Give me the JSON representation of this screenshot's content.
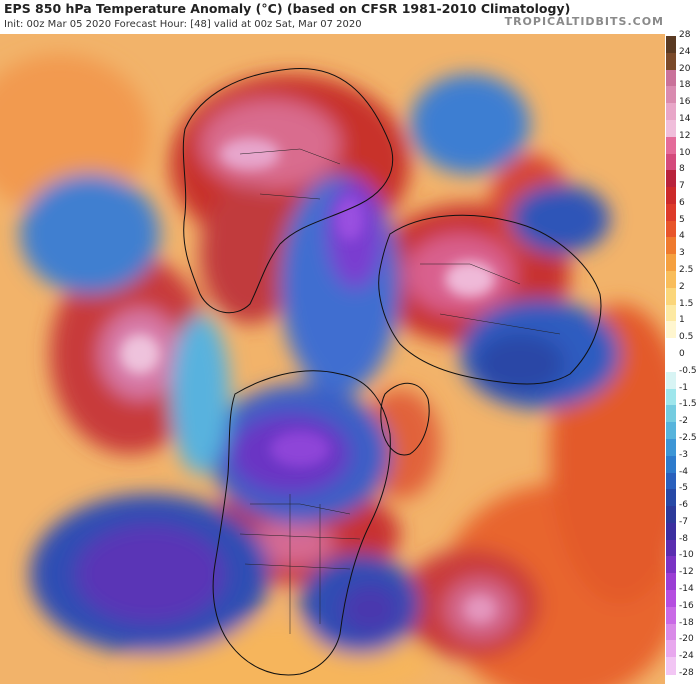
{
  "header": {
    "title": "EPS 850 hPa Temperature Anomaly (°C) (based on CFSR 1981-2010 Climatology)",
    "subtitle": "Init: 00z Mar 05 2020   Forecast Hour: [48]   valid at 00z Sat, Mar 07 2020",
    "brand": "TROPICALTIDBITS.COM"
  },
  "map": {
    "projection": "north-polar-stereographic",
    "features": [
      "coastlines",
      "country-borders",
      "state-borders"
    ]
  },
  "legend": {
    "labels": [
      "28",
      "24",
      "20",
      "18",
      "16",
      "14",
      "12",
      "10",
      "8",
      "7",
      "6",
      "5",
      "4",
      "3",
      "2.5",
      "2",
      "1.5",
      "1",
      "0.5",
      "0",
      "-0.5",
      "-1",
      "-1.5",
      "-2",
      "-2.5",
      "-3",
      "-4",
      "-5",
      "-6",
      "-7",
      "-8",
      "-10",
      "-12",
      "-14",
      "-16",
      "-18",
      "-20",
      "-24",
      "-28"
    ],
    "colors": [
      "#5a3a22",
      "#7a4a2a",
      "#c9729a",
      "#d98bb0",
      "#e8a6c8",
      "#f0bedb",
      "#e46b9a",
      "#d44a7c",
      "#b8233c",
      "#cc2a2a",
      "#dd3a2a",
      "#e8552a",
      "#ef7a2e",
      "#f5a040",
      "#f9bd5a",
      "#fbd67a",
      "#fde9a2",
      "#fff6cf",
      "#ffffff",
      "#ffffff",
      "#d8f4f4",
      "#9ee6ec",
      "#74cce0",
      "#57b4dc",
      "#3d96d6",
      "#2e7bcc",
      "#2a60bd",
      "#2749a6",
      "#2c3a9a",
      "#3b2fa0",
      "#5a2eb0",
      "#7a33c4",
      "#9a3ed4",
      "#b54ee0",
      "#c96ae6",
      "#d98ae8",
      "#e8a8ee",
      "#f2c6f4",
      "#faddfa"
    ]
  }
}
